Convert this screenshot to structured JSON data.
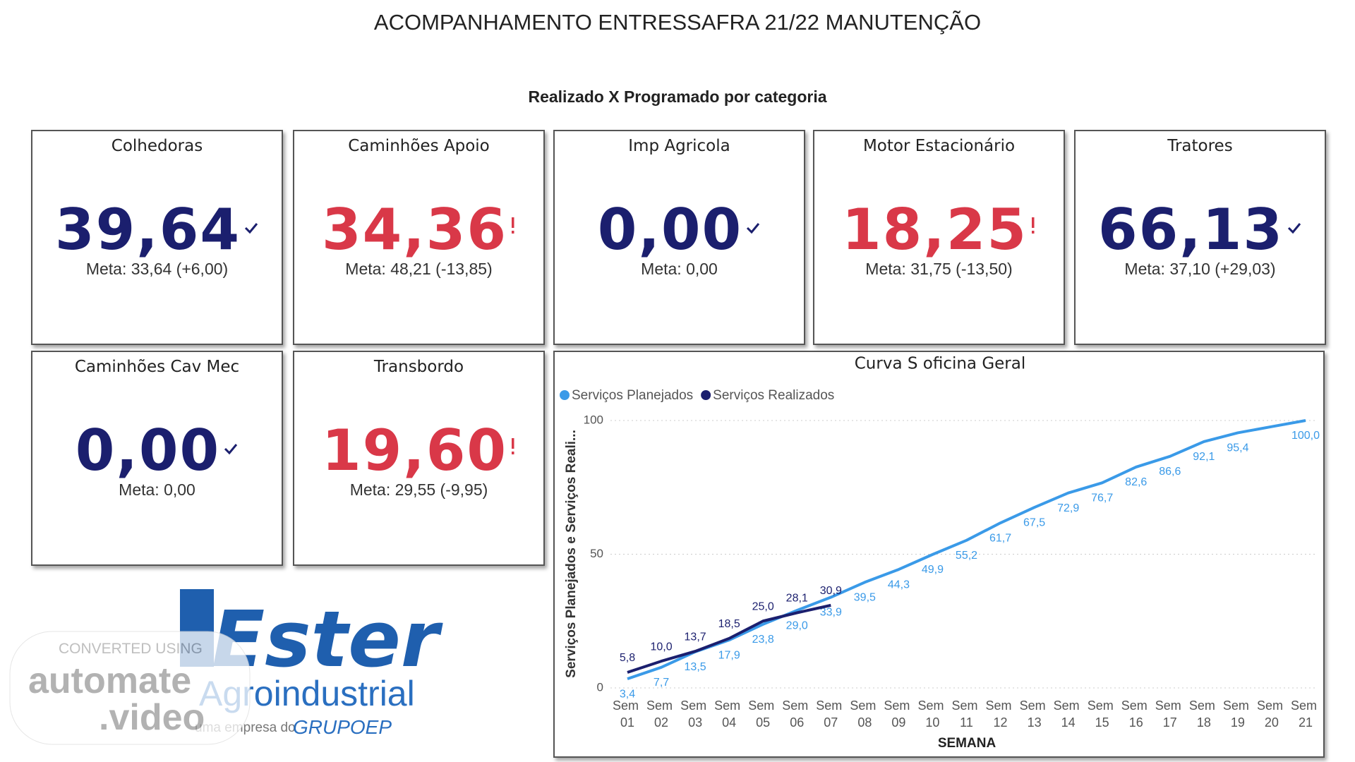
{
  "header": {
    "title": "ACOMPANHAMENTO ENTRESSAFRA 21/22 MANUTENÇÃO",
    "subtitle": "Realizado X Programado por categoria"
  },
  "status_colors": {
    "ok": "#1b1f6e",
    "alert": "#d93848"
  },
  "kpis": [
    {
      "title": "Colhedoras",
      "value": "39,64",
      "meta": "Meta: 33,64 (+6,00)",
      "status": "ok"
    },
    {
      "title": "Caminhões Apoio",
      "value": "34,36",
      "meta": "Meta: 48,21 (-13,85)",
      "status": "alert"
    },
    {
      "title": "Imp Agricola",
      "value": "0,00",
      "meta": "Meta: 0,00",
      "status": "ok"
    },
    {
      "title": "Motor Estacionário",
      "value": "18,25",
      "meta": "Meta: 31,75 (-13,50)",
      "status": "alert"
    },
    {
      "title": "Tratores",
      "value": "66,13",
      "meta": "Meta: 37,10 (+29,03)",
      "status": "ok"
    },
    {
      "title": "Caminhões Cav Mec",
      "value": "0,00",
      "meta": "Meta: 0,00",
      "status": "ok"
    },
    {
      "title": "Transbordo",
      "value": "19,60",
      "meta": "Meta: 29,55 (-9,95)",
      "status": "alert"
    }
  ],
  "chart_data": {
    "type": "line",
    "title": "Curva S oficina Geral",
    "y_label": "Serviços Planejados e Serviços Reali...",
    "x_label": "SEMANA",
    "categories": [
      "Sem 01",
      "Sem 02",
      "Sem 03",
      "Sem 04",
      "Sem 05",
      "Sem 06",
      "Sem 07",
      "Sem 08",
      "Sem 09",
      "Sem 10",
      "Sem 11",
      "Sem 12",
      "Sem 13",
      "Sem 14",
      "Sem 15",
      "Sem 16",
      "Sem 17",
      "Sem 18",
      "Sem 19",
      "Sem 20",
      "Sem 21"
    ],
    "series": [
      {
        "name": "Serviços Planejados",
        "color": "#3a9ae8",
        "values": [
          3.4,
          7.7,
          13.5,
          17.9,
          23.8,
          29.0,
          33.9,
          39.5,
          44.3,
          49.9,
          55.2,
          61.7,
          67.5,
          72.9,
          76.7,
          82.6,
          86.6,
          92.1,
          95.4,
          97.7,
          100.0
        ],
        "value_labels": [
          "3,4",
          "7,7",
          "13,5",
          "17,9",
          "23,8",
          "29,0",
          "33,9",
          "39,5",
          "44,3",
          "49,9",
          "55,2",
          "61,7",
          "67,5",
          "72,9",
          "76,7",
          "82,6",
          "86,6",
          "92,1",
          "95,4",
          null,
          "100,0"
        ]
      },
      {
        "name": "Serviços Realizados",
        "color": "#1b1f6e",
        "values": [
          5.8,
          10.0,
          13.7,
          18.5,
          25.0,
          28.1,
          30.9,
          null,
          null,
          null,
          null,
          null,
          null,
          null,
          null,
          null,
          null,
          null,
          null,
          null,
          null
        ],
        "value_labels": [
          "5,8",
          "10,0",
          "13,7",
          "18,5",
          "25,0",
          "28,1",
          "30,9",
          null,
          null,
          null,
          null,
          null,
          null,
          null,
          null,
          null,
          null,
          null,
          null,
          null,
          null
        ]
      }
    ],
    "ylim": [
      0,
      100
    ],
    "yticks": [
      0,
      50,
      100
    ],
    "grid": true
  },
  "logo": {
    "name": "Ester",
    "sub": "Agroindustrial",
    "tagline": "uma empresa do",
    "group": "GRUPOEP"
  },
  "watermark": {
    "line1": "CONVERTED USING",
    "line2": "automate",
    "line3": ".video"
  }
}
